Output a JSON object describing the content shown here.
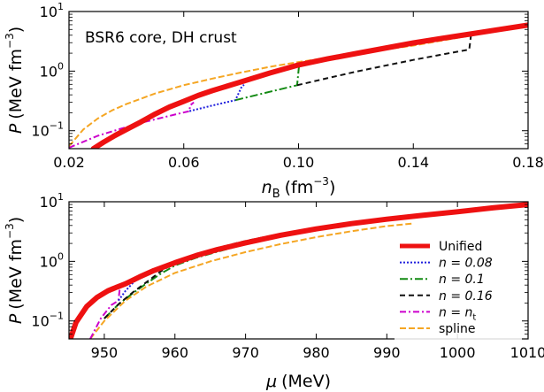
{
  "chart_data": [
    {
      "type": "line",
      "panel": "top",
      "annotation": "BSR6 core, DH crust",
      "x_var": "nB",
      "xlabel_main": "n",
      "xlabel_sub": "B",
      "xlabel_unit": "(fm",
      "xlabel_unit_sup": "−3",
      "xlabel_close": ")",
      "ylabel_main": "P",
      "ylabel_unit": "(MeV fm",
      "ylabel_unit_sup": "−3",
      "ylabel_close": ")",
      "xlim": [
        0.02,
        0.18
      ],
      "ylim": [
        0.05,
        10
      ],
      "yscale": "log",
      "xticks": [
        0.02,
        0.06,
        0.1,
        0.14,
        0.18
      ],
      "xtick_labels": [
        "0.02",
        "0.06",
        "0.10",
        "0.14",
        "0.18"
      ],
      "yticks": [
        0.1,
        1,
        10
      ],
      "ytick_bases": [
        "10",
        "10",
        "10"
      ],
      "ytick_exps": [
        "−1",
        "0",
        "1"
      ],
      "series": [
        {
          "name": "n = n_t",
          "color": "#cc00cc",
          "dash": "7,3,2,3",
          "width": 2,
          "x": [
            0.02,
            0.03,
            0.0375,
            0.045,
            0.052,
            0.058,
            0.062,
            0.0622,
            0.0635
          ],
          "y": [
            0.052,
            0.082,
            0.106,
            0.135,
            0.164,
            0.192,
            0.213,
            0.265,
            0.3
          ]
        },
        {
          "name": "n = 0.08",
          "color": "#1f1fdd",
          "dash": "2,2",
          "width": 2,
          "x": [
            0.062,
            0.07,
            0.078,
            0.0802,
            0.081
          ],
          "y": [
            0.213,
            0.265,
            0.325,
            0.55,
            0.59
          ]
        },
        {
          "name": "n = 0.1",
          "color": "#138a13",
          "dash": "9,3,2,3",
          "width": 2,
          "x": [
            0.078,
            0.09,
            0.0995,
            0.1002,
            0.101
          ],
          "y": [
            0.325,
            0.45,
            0.58,
            1.25,
            1.28
          ]
        },
        {
          "name": "n = 0.16",
          "color": "#111111",
          "dash": "6,4",
          "width": 2,
          "x": [
            0.0995,
            0.11,
            0.12,
            0.13,
            0.14,
            0.15,
            0.1595,
            0.1602,
            0.165,
            0.17,
            0.18
          ],
          "y": [
            0.58,
            0.76,
            0.98,
            1.23,
            1.54,
            1.9,
            2.3,
            4.4,
            4.8,
            5.2,
            6.1
          ]
        },
        {
          "name": "spline",
          "color": "#f5a623",
          "dash": "7,3",
          "width": 2,
          "x": [
            0.02,
            0.025,
            0.03,
            0.035,
            0.04,
            0.05,
            0.06,
            0.07,
            0.08,
            0.09,
            0.1,
            0.12,
            0.14,
            0.16,
            0.18
          ],
          "y": [
            0.055,
            0.105,
            0.16,
            0.22,
            0.28,
            0.42,
            0.58,
            0.75,
            0.95,
            1.18,
            1.42,
            1.97,
            2.68,
            3.95,
            6.1
          ]
        },
        {
          "name": "Unified",
          "color": "#ee1111",
          "dash": "",
          "width": 6,
          "x": [
            0.0285,
            0.032,
            0.036,
            0.04,
            0.045,
            0.05,
            0.055,
            0.06,
            0.065,
            0.07,
            0.08,
            0.09,
            0.1,
            0.11,
            0.12,
            0.13,
            0.14,
            0.15,
            0.16,
            0.17,
            0.18
          ],
          "y": [
            0.05,
            0.064,
            0.083,
            0.105,
            0.14,
            0.19,
            0.25,
            0.31,
            0.39,
            0.47,
            0.66,
            0.93,
            1.27,
            1.6,
            1.97,
            2.42,
            2.97,
            3.55,
            4.2,
            5.0,
            5.9
          ]
        }
      ]
    },
    {
      "type": "line",
      "panel": "bottom",
      "x_var": "mu",
      "xlabel_main": "μ",
      "xlabel_unit": "(MeV)",
      "ylabel_main": "P",
      "ylabel_unit": "(MeV fm",
      "ylabel_unit_sup": "−3",
      "ylabel_close": ")",
      "xlim": [
        945,
        1010
      ],
      "ylim": [
        0.05,
        10
      ],
      "yscale": "log",
      "xticks": [
        950,
        960,
        970,
        980,
        990,
        1000,
        1010
      ],
      "xtick_labels": [
        "950",
        "960",
        "970",
        "980",
        "990",
        "1000",
        "1010"
      ],
      "yticks": [
        0.1,
        1,
        10
      ],
      "ytick_bases": [
        "10",
        "10",
        "10"
      ],
      "ytick_exps": [
        "−1",
        "0",
        "1"
      ],
      "legend": {
        "position": "lower-right",
        "entries": [
          {
            "label": "Unified",
            "color": "#ee1111",
            "dash": "",
            "width": 5
          },
          {
            "label": "n = 0.08",
            "color": "#1f1fdd",
            "dash": "2,2",
            "width": 2
          },
          {
            "label": "n = 0.1",
            "color": "#138a13",
            "dash": "9,3,2,3",
            "width": 2
          },
          {
            "label": "n = 0.16",
            "color": "#111111",
            "dash": "6,4",
            "width": 2
          },
          {
            "label": "n = n",
            "sub": "t",
            "color": "#cc00cc",
            "dash": "7,3,2,3",
            "width": 2
          },
          {
            "label": "spline",
            "color": "#f5a623",
            "dash": "7,3",
            "width": 2
          }
        ]
      },
      "series": [
        {
          "name": "spline",
          "color": "#f5a623",
          "dash": "7,3",
          "width": 2,
          "x": [
            948,
            950,
            953,
            956,
            960,
            965,
            970,
            975,
            980,
            985,
            990,
            993.5
          ],
          "y": [
            0.05,
            0.1,
            0.22,
            0.38,
            0.64,
            1.0,
            1.43,
            1.95,
            2.55,
            3.2,
            3.9,
            4.3
          ]
        },
        {
          "name": "n = n_t",
          "color": "#cc00cc",
          "dash": "7,3,2,3",
          "width": 2,
          "x": [
            948,
            949.5,
            951,
            952,
            952.2,
            953
          ],
          "y": [
            0.05,
            0.11,
            0.185,
            0.22,
            0.36,
            0.42
          ]
        },
        {
          "name": "n = 0.1",
          "color": "#138a13",
          "dash": "9,3,2,3",
          "width": 2,
          "x": [
            950,
            952,
            954,
            956,
            958,
            960,
            963,
            966,
            970,
            975,
            980
          ],
          "y": [
            0.11,
            0.19,
            0.29,
            0.43,
            0.62,
            0.85,
            1.15,
            1.45,
            1.95,
            2.6,
            3.4
          ]
        },
        {
          "name": "n = 0.16",
          "color": "#111111",
          "dash": "6,4",
          "width": 2,
          "x": [
            950,
            952,
            954,
            956,
            958,
            960,
            963,
            966,
            970,
            975,
            980,
            985,
            990,
            1000,
            1010
          ],
          "y": [
            0.11,
            0.19,
            0.3,
            0.45,
            0.68,
            0.95,
            1.32,
            1.68,
            2.2,
            2.9,
            3.7,
            4.3,
            5.0,
            6.8,
            9.0
          ]
        },
        {
          "name": "n = 0.08",
          "color": "#1f1fdd",
          "dash": "2,2",
          "width": 2,
          "x": [
            952,
            953,
            954,
            955,
            956,
            958
          ],
          "y": [
            0.22,
            0.32,
            0.43,
            0.55,
            0.64,
            0.8
          ]
        },
        {
          "name": "Unified",
          "color": "#ee1111",
          "dash": "",
          "width": 6,
          "x": [
            945.2,
            946,
            947.5,
            949,
            950.5,
            951.8,
            953,
            955,
            957,
            960,
            963,
            966,
            970,
            975,
            980,
            985,
            990,
            995,
            1000,
            1005,
            1010
          ],
          "y": [
            0.05,
            0.095,
            0.175,
            0.25,
            0.32,
            0.37,
            0.42,
            0.55,
            0.7,
            0.95,
            1.25,
            1.58,
            2.05,
            2.75,
            3.5,
            4.3,
            5.1,
            5.9,
            6.8,
            7.9,
            9.0
          ]
        }
      ]
    }
  ]
}
